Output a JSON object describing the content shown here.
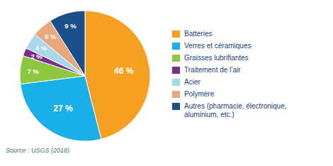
{
  "chart_data": {
    "type": "pie",
    "categories": [
      "Batteries",
      "Verres et céramiques",
      "Graisses lubrifiantes",
      "Traitement de l’air",
      "Acier",
      "Polymère",
      "Autres (pharmacie, électronique,\naluminium, etc.)"
    ],
    "values": [
      46,
      27,
      7,
      2,
      4,
      5,
      9
    ],
    "colors": [
      "#F5A020",
      "#1AAFE8",
      "#8DC63F",
      "#7B2D8B",
      "#A8D8EA",
      "#E8A87C",
      "#1A4F8A"
    ],
    "value_labels": [
      "46 %",
      "27 %",
      "7 %",
      "2 %",
      "4 %",
      "5 %",
      "9 %"
    ],
    "data_labels": true,
    "legend": "right",
    "annotations": [
      "Source : USGS (2018)"
    ]
  }
}
